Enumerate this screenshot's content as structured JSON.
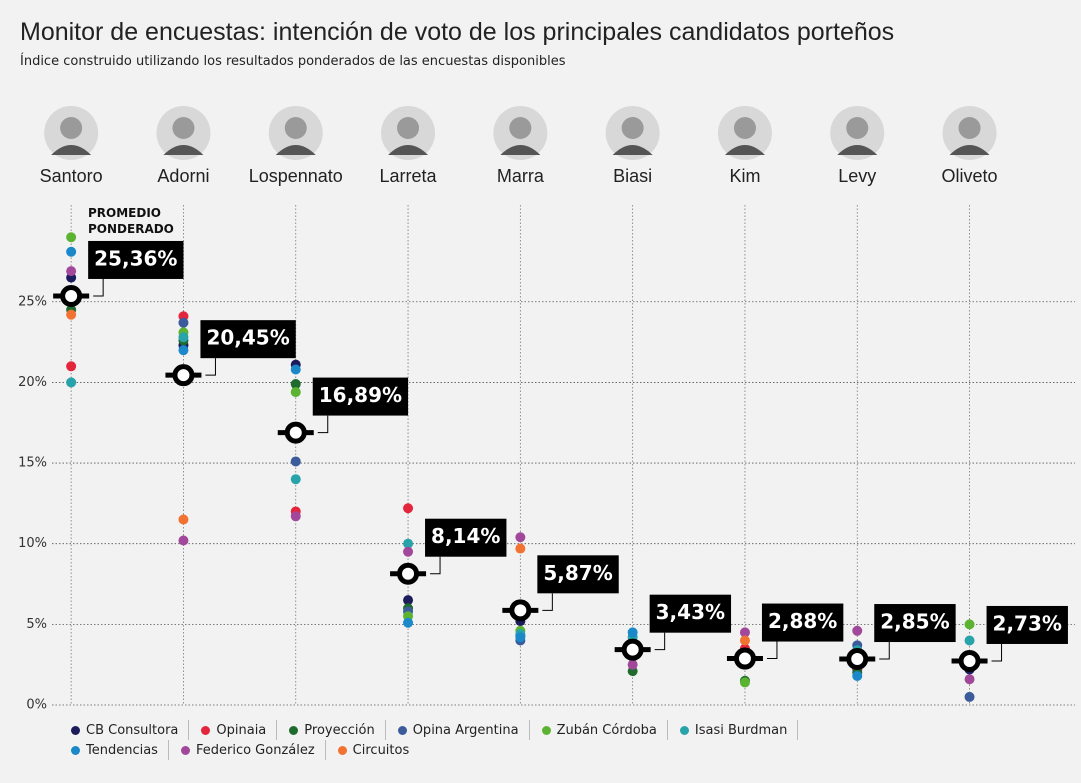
{
  "chart_data": {
    "type": "dot",
    "title": "Monitor de encuestas: intención de voto de los principales candidatos porteños",
    "subtitle": "Índice construido utilizando los resultados ponderados de las encuestas disponibles",
    "annotation": "PROMEDIO PONDERADO",
    "categories": [
      "Santoro",
      "Adorni",
      "Lospennato",
      "Larreta",
      "Marra",
      "Biasi",
      "Kim",
      "Levy",
      "Oliveto"
    ],
    "series": [
      {
        "name": "CB Consultora",
        "color": "#1c1c5c",
        "values": [
          26.5,
          22.3,
          21.1,
          6.5,
          5.2,
          3.0,
          2.6,
          2.2,
          2.2
        ]
      },
      {
        "name": "Opinaia",
        "color": "#e3263b",
        "values": [
          21.0,
          24.1,
          12.0,
          12.2,
          6.1,
          3.6,
          3.5,
          2.3,
          3.0
        ]
      },
      {
        "name": "Proyección",
        "color": "#1f6b2e",
        "values": [
          24.5,
          22.6,
          19.9,
          6.0,
          4.3,
          2.1,
          1.5,
          2.0,
          2.4
        ]
      },
      {
        "name": "Opina Argentina",
        "color": "#3b5b9b",
        "values": [
          25.0,
          23.7,
          15.1,
          5.8,
          4.0,
          3.2,
          2.5,
          3.7,
          0.5
        ]
      },
      {
        "name": "Zubán Córdoba",
        "color": "#5cb332",
        "values": [
          29.0,
          23.1,
          19.4,
          5.5,
          4.6,
          3.3,
          1.4,
          2.6,
          5.0
        ]
      },
      {
        "name": "Isasi Burdman",
        "color": "#29a3aa",
        "values": [
          20.0,
          22.8,
          14.0,
          10.0,
          4.4,
          4.2,
          3.0,
          3.4,
          4.0
        ]
      },
      {
        "name": "Tendencias",
        "color": "#1a88c9",
        "values": [
          28.1,
          22.0,
          20.8,
          5.1,
          4.2,
          4.5,
          2.8,
          1.8,
          2.7
        ]
      },
      {
        "name": "Federico González",
        "color": "#a2489b",
        "values": [
          26.9,
          10.2,
          11.7,
          9.5,
          10.4,
          2.5,
          4.5,
          4.6,
          1.6
        ]
      },
      {
        "name": "Circuitos",
        "color": "#f27231",
        "values": [
          24.2,
          11.5,
          null,
          null,
          9.7,
          null,
          4.0,
          null,
          null
        ]
      }
    ],
    "average": {
      "values": [
        25.36,
        20.45,
        16.89,
        8.14,
        5.87,
        3.43,
        2.88,
        2.85,
        2.73
      ],
      "value_labels": [
        "25,36%",
        "20,45%",
        "16,89%",
        "8,14%",
        "5,87%",
        "3,43%",
        "2,88%",
        "2,85%",
        "2,73%"
      ]
    },
    "ylim": [
      0,
      31
    ],
    "yticks": [
      {
        "value": 0,
        "label": "0%"
      },
      {
        "value": 5,
        "label": "5%"
      },
      {
        "value": 10,
        "label": "10%"
      },
      {
        "value": 15,
        "label": "15%"
      },
      {
        "value": 20,
        "label": "20%"
      },
      {
        "value": 25,
        "label": "25%"
      }
    ],
    "grid": true,
    "legend": "bottom"
  }
}
